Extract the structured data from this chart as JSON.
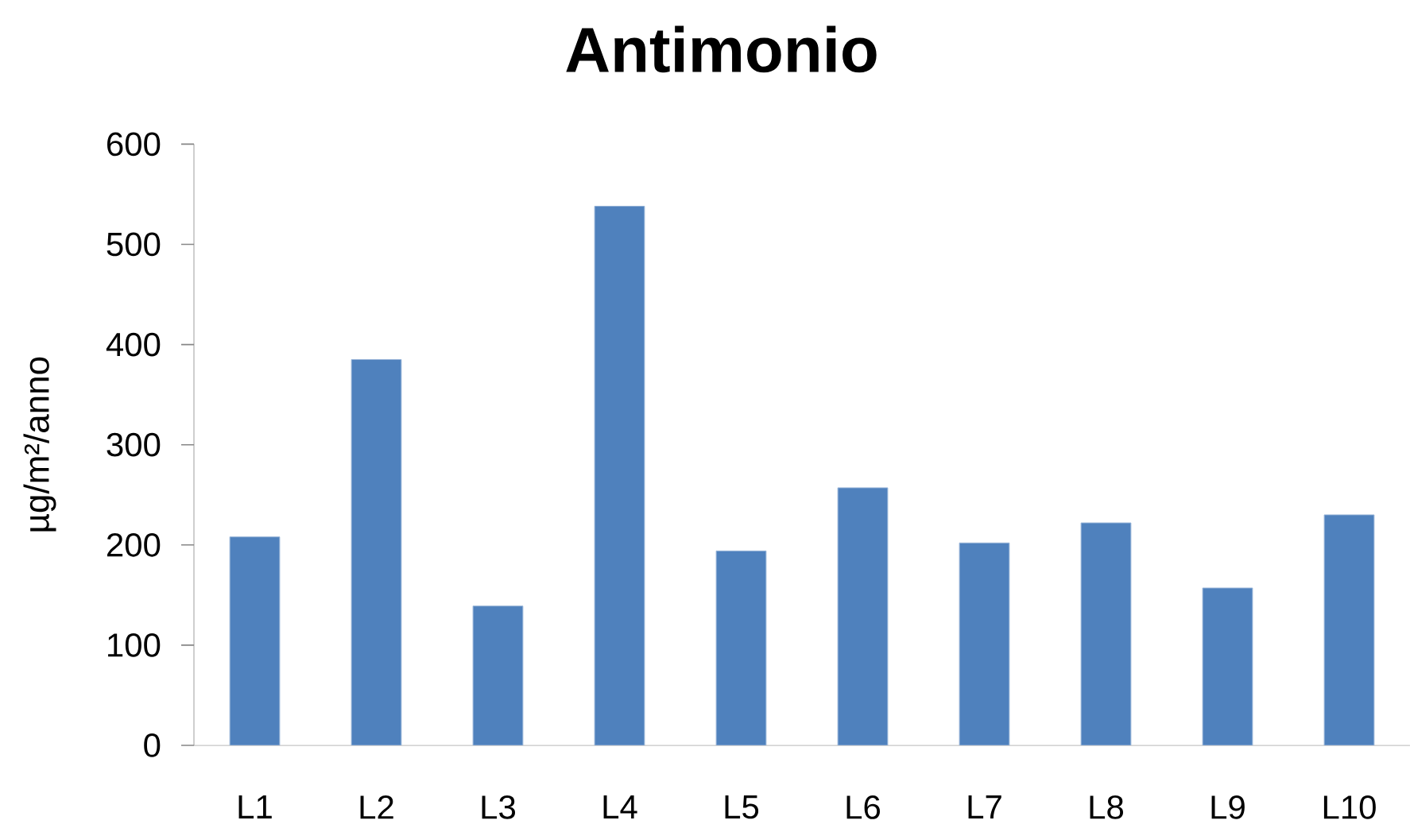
{
  "chart_data": {
    "type": "bar",
    "title": "Antimonio",
    "ylabel": "µg/m²/anno",
    "categories": [
      "L1",
      "L2",
      "L3",
      "L4",
      "L5",
      "L6",
      "L7",
      "L8",
      "L9",
      "L10"
    ],
    "values": [
      208,
      385,
      139,
      538,
      194,
      257,
      202,
      222,
      157,
      230
    ],
    "color": "#4f81bd",
    "ylim": [
      0,
      600
    ],
    "yticks": [
      0,
      100,
      200,
      300,
      400,
      500,
      600
    ]
  }
}
